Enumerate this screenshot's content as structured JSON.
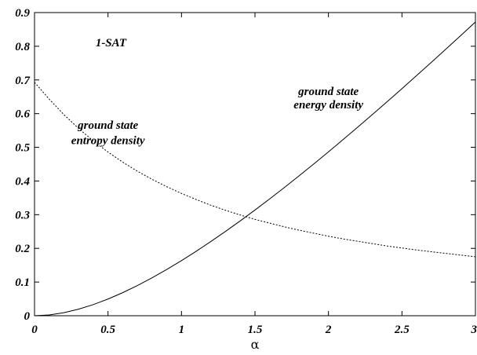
{
  "chart_data": {
    "type": "line",
    "xlabel": "α",
    "ylabel": "",
    "xlim": [
      0,
      3
    ],
    "ylim": [
      0,
      0.9
    ],
    "grid": false,
    "xticks": [
      "0",
      "0.5",
      "1",
      "1.5",
      "2",
      "2.5",
      "3"
    ],
    "yticks": [
      "0",
      "0.1",
      "0.2",
      "0.3",
      "0.4",
      "0.5",
      "0.6",
      "0.7",
      "0.8",
      "0.9"
    ],
    "annotations": [
      {
        "text": "1-SAT",
        "x": 0.52,
        "y": 0.8
      },
      {
        "text": "ground state",
        "x": 0.5,
        "y": 0.555
      },
      {
        "text": "entropy density",
        "x": 0.5,
        "y": 0.51
      },
      {
        "text": "ground state",
        "x": 2.0,
        "y": 0.655
      },
      {
        "text": "energy density",
        "x": 2.0,
        "y": 0.615
      }
    ],
    "series": [
      {
        "style": "solid",
        "x": [
          0,
          0.1,
          0.2,
          0.3,
          0.4,
          0.5,
          0.6,
          0.7,
          0.8,
          0.9,
          1.0,
          1.1,
          1.2,
          1.3,
          1.4,
          1.5,
          1.6,
          1.7,
          1.8,
          1.9,
          2.0,
          2.1,
          2.2,
          2.3,
          2.4,
          2.5,
          2.6,
          2.7,
          2.8,
          2.9,
          3.0
        ],
        "y": [
          0.0,
          0.0024,
          0.0091,
          0.0195,
          0.0331,
          0.0496,
          0.0685,
          0.0896,
          0.1126,
          0.1374,
          0.1637,
          0.1914,
          0.2204,
          0.2505,
          0.2817,
          0.3138,
          0.3469,
          0.3807,
          0.4153,
          0.4506,
          0.4865,
          0.5231,
          0.5601,
          0.5977,
          0.6357,
          0.6742,
          0.7131,
          0.7523,
          0.7919,
          0.8319,
          0.8721
        ]
      },
      {
        "style": "dashed",
        "x": [
          0,
          0.1,
          0.2,
          0.3,
          0.4,
          0.5,
          0.6,
          0.7,
          0.8,
          0.9,
          1.0,
          1.1,
          1.2,
          1.3,
          1.4,
          1.5,
          1.6,
          1.7,
          1.8,
          1.9,
          2.0,
          2.1,
          2.2,
          2.3,
          2.4,
          2.5,
          2.6,
          2.7,
          2.8,
          2.9,
          3.0
        ],
        "y": [
          0.693,
          0.643,
          0.597,
          0.556,
          0.519,
          0.486,
          0.456,
          0.429,
          0.405,
          0.383,
          0.363,
          0.345,
          0.328,
          0.313,
          0.299,
          0.286,
          0.275,
          0.264,
          0.254,
          0.245,
          0.236,
          0.228,
          0.221,
          0.214,
          0.207,
          0.201,
          0.195,
          0.19,
          0.185,
          0.18,
          0.175
        ]
      }
    ]
  }
}
